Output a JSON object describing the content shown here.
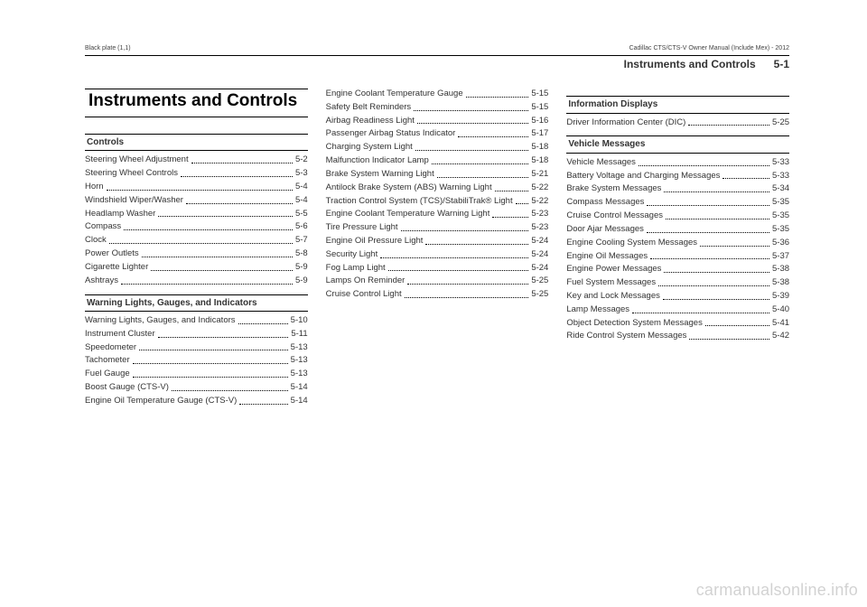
{
  "crumb_left": "Black plate (1,1)",
  "crumb_right": "Cadillac CTS/CTS-V Owner Manual (Include Mex) - 2012",
  "header_title": "Instruments and Controls",
  "page_number": "5-1",
  "chapter_title": "Instruments and Controls",
  "watermark": "carmanualsonline.info",
  "col1": {
    "sections": [
      {
        "head": "Controls",
        "items": [
          {
            "label": "Steering Wheel Adjustment",
            "pg": "5-2"
          },
          {
            "label": "Steering Wheel Controls",
            "pg": "5-3"
          },
          {
            "label": "Horn",
            "pg": "5-4"
          },
          {
            "label": "Windshield Wiper/Washer",
            "pg": "5-4"
          },
          {
            "label": "Headlamp Washer",
            "pg": "5-5"
          },
          {
            "label": "Compass",
            "pg": "5-6"
          },
          {
            "label": "Clock",
            "pg": "5-7"
          },
          {
            "label": "Power Outlets",
            "pg": "5-8"
          },
          {
            "label": "Cigarette Lighter",
            "pg": "5-9"
          },
          {
            "label": "Ashtrays",
            "pg": "5-9"
          }
        ]
      },
      {
        "head": "Warning Lights, Gauges, and Indicators",
        "items": [
          {
            "label": "Warning Lights, Gauges, and Indicators",
            "pg": "5-10"
          },
          {
            "label": "Instrument Cluster",
            "pg": "5-11"
          },
          {
            "label": "Speedometer",
            "pg": "5-13"
          },
          {
            "label": "Tachometer",
            "pg": "5-13"
          },
          {
            "label": "Fuel Gauge",
            "pg": "5-13"
          },
          {
            "label": "Boost Gauge (CTS-V)",
            "pg": "5-14"
          },
          {
            "label": "Engine Oil Temperature Gauge (CTS-V)",
            "pg": "5-14"
          }
        ]
      }
    ]
  },
  "col2": {
    "items": [
      {
        "label": "Engine Coolant Temperature Gauge",
        "pg": "5-15"
      },
      {
        "label": "Safety Belt Reminders",
        "pg": "5-15"
      },
      {
        "label": "Airbag Readiness Light",
        "pg": "5-16"
      },
      {
        "label": "Passenger Airbag Status Indicator",
        "pg": "5-17"
      },
      {
        "label": "Charging System Light",
        "pg": "5-18"
      },
      {
        "label": "Malfunction Indicator Lamp",
        "pg": "5-18"
      },
      {
        "label": "Brake System Warning Light",
        "pg": "5-21"
      },
      {
        "label": "Antilock Brake System (ABS) Warning Light",
        "pg": "5-22"
      },
      {
        "label": "Traction Control System (TCS)/StabiliTrak® Light",
        "pg": "5-22"
      },
      {
        "label": "Engine Coolant Temperature Warning Light",
        "pg": "5-23"
      },
      {
        "label": "Tire Pressure Light",
        "pg": "5-23"
      },
      {
        "label": "Engine Oil Pressure Light",
        "pg": "5-24"
      },
      {
        "label": "Security Light",
        "pg": "5-24"
      },
      {
        "label": "Fog Lamp Light",
        "pg": "5-24"
      },
      {
        "label": "Lamps On Reminder",
        "pg": "5-25"
      },
      {
        "label": "Cruise Control Light",
        "pg": "5-25"
      }
    ]
  },
  "col3": {
    "sections": [
      {
        "head": "Information Displays",
        "items": [
          {
            "label": "Driver Information Center (DIC)",
            "pg": "5-25"
          }
        ]
      },
      {
        "head": "Vehicle Messages",
        "items": [
          {
            "label": "Vehicle Messages",
            "pg": "5-33"
          },
          {
            "label": "Battery Voltage and Charging Messages",
            "pg": "5-33"
          },
          {
            "label": "Brake System Messages",
            "pg": "5-34"
          },
          {
            "label": "Compass Messages",
            "pg": "5-35"
          },
          {
            "label": "Cruise Control Messages",
            "pg": "5-35"
          },
          {
            "label": "Door Ajar Messages",
            "pg": "5-35"
          },
          {
            "label": "Engine Cooling System Messages",
            "pg": "5-36"
          },
          {
            "label": "Engine Oil Messages",
            "pg": "5-37"
          },
          {
            "label": "Engine Power Messages",
            "pg": "5-38"
          },
          {
            "label": "Fuel System Messages",
            "pg": "5-38"
          },
          {
            "label": "Key and Lock Messages",
            "pg": "5-39"
          },
          {
            "label": "Lamp Messages",
            "pg": "5-40"
          },
          {
            "label": "Object Detection System Messages",
            "pg": "5-41"
          },
          {
            "label": "Ride Control System Messages",
            "pg": "5-42"
          }
        ]
      }
    ]
  }
}
